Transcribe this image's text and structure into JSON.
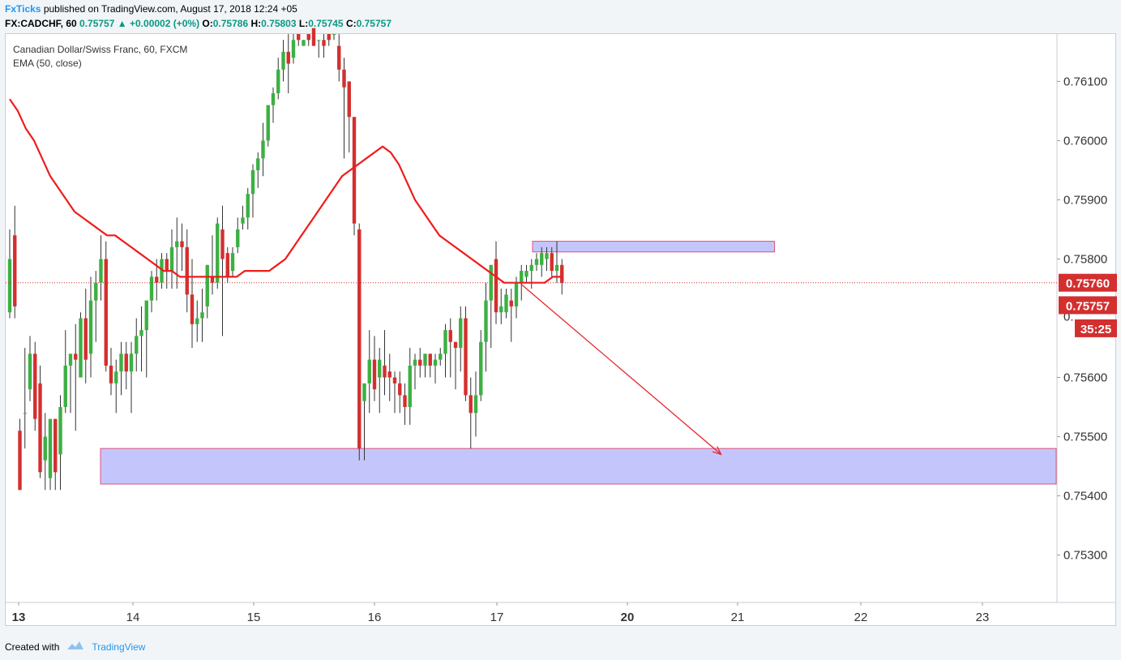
{
  "header": {
    "author": "FxTicks",
    "published_text": "published on TradingView.com, August 17, 2018 12:24 +05",
    "symbol": "FX:CADCHF, 60",
    "last": "0.75757",
    "change": "+0.00002 (+0%)",
    "open_label": "O:",
    "open": "0.75786",
    "high_label": "H:",
    "high": "0.75803",
    "low_label": "L:",
    "low": "0.75745",
    "close_label": "C:",
    "close": "0.75757"
  },
  "legend": {
    "instrument": "Canadian Dollar/Swiss Franc, 60, FXCM",
    "indicator": "EMA (50, close)"
  },
  "footer": {
    "created_with": "Created with",
    "brand": "TradingView"
  },
  "colors": {
    "up": "#3cb043",
    "down": "#d32f2f",
    "ema": "#ee1c1c",
    "zone_fill": "#c4c6fb",
    "zone_border": "#e0507a",
    "arrow": "#e8282d"
  },
  "chart_data": {
    "type": "candlestick",
    "ylim": [
      0.7522,
      0.7618
    ],
    "y_ticks": [
      "0.76100",
      "0.76000",
      "0.75900",
      "0.75800",
      "0.75600",
      "0.75500",
      "0.75400",
      "0.75300"
    ],
    "x_ticks": [
      "13",
      "14",
      "15",
      "16",
      "17",
      "20",
      "21",
      "22",
      "23"
    ],
    "price_labels": [
      "0.75760",
      "0.75757",
      "35:25"
    ],
    "current_price": 0.7576,
    "overlay_label": "0.",
    "candles": [
      [
        0.7571,
        0.7585,
        0.757,
        0.758
      ],
      [
        0.7584,
        0.7589,
        0.757,
        0.7572
      ],
      [
        0.7551,
        0.7553,
        0.7541,
        0.7541
      ],
      [
        0.7554,
        0.7565,
        0.7548,
        0.7554
      ],
      [
        0.7558,
        0.7567,
        0.7556,
        0.7564
      ],
      [
        0.7564,
        0.7566,
        0.7551,
        0.7553
      ],
      [
        0.7559,
        0.7562,
        0.7543,
        0.7544
      ],
      [
        0.7546,
        0.7554,
        0.7541,
        0.755
      ],
      [
        0.7543,
        0.7553,
        0.7541,
        0.7553
      ],
      [
        0.7553,
        0.7553,
        0.7541,
        0.7544
      ],
      [
        0.7547,
        0.7557,
        0.7541,
        0.7555
      ],
      [
        0.7555,
        0.7568,
        0.7554,
        0.7562
      ],
      [
        0.7562,
        0.7564,
        0.7554,
        0.7564
      ],
      [
        0.7564,
        0.7569,
        0.7551,
        0.7563
      ],
      [
        0.756,
        0.7571,
        0.756,
        0.757
      ],
      [
        0.757,
        0.7575,
        0.7559,
        0.7563
      ],
      [
        0.7564,
        0.7577,
        0.756,
        0.7573
      ],
      [
        0.7573,
        0.7578,
        0.7566,
        0.7576
      ],
      [
        0.7576,
        0.7584,
        0.7573,
        0.758
      ],
      [
        0.758,
        0.7583,
        0.7561,
        0.7562
      ],
      [
        0.7562,
        0.7565,
        0.7557,
        0.7559
      ],
      [
        0.7559,
        0.7563,
        0.7554,
        0.7561
      ],
      [
        0.7561,
        0.7566,
        0.7557,
        0.7564
      ],
      [
        0.7564,
        0.7566,
        0.7558,
        0.7561
      ],
      [
        0.7561,
        0.7566,
        0.7554,
        0.7564
      ],
      [
        0.7564,
        0.757,
        0.7561,
        0.7567
      ],
      [
        0.7567,
        0.7572,
        0.7561,
        0.7568
      ],
      [
        0.7568,
        0.7573,
        0.756,
        0.7573
      ],
      [
        0.7573,
        0.7578,
        0.7571,
        0.7577
      ],
      [
        0.7577,
        0.758,
        0.7573,
        0.7576
      ],
      [
        0.7576,
        0.7581,
        0.7575,
        0.758
      ],
      [
        0.758,
        0.7581,
        0.7575,
        0.7578
      ],
      [
        0.7578,
        0.7585,
        0.7575,
        0.7582
      ],
      [
        0.7582,
        0.7587,
        0.7575,
        0.7583
      ],
      [
        0.7583,
        0.7586,
        0.7578,
        0.7582
      ],
      [
        0.7582,
        0.7585,
        0.7571,
        0.7574
      ],
      [
        0.7574,
        0.758,
        0.7565,
        0.7569
      ],
      [
        0.7569,
        0.7573,
        0.7566,
        0.757
      ],
      [
        0.757,
        0.7575,
        0.7566,
        0.7571
      ],
      [
        0.7572,
        0.7579,
        0.757,
        0.7579
      ],
      [
        0.7577,
        0.7584,
        0.7574,
        0.7576
      ],
      [
        0.7576,
        0.7587,
        0.7575,
        0.7586
      ],
      [
        0.7585,
        0.7589,
        0.7567,
        0.758
      ],
      [
        0.7581,
        0.7582,
        0.7576,
        0.7577
      ],
      [
        0.7578,
        0.7582,
        0.7577,
        0.7581
      ],
      [
        0.7582,
        0.7587,
        0.7581,
        0.7585
      ],
      [
        0.7586,
        0.7589,
        0.7585,
        0.7587
      ],
      [
        0.7587,
        0.7592,
        0.7585,
        0.7591
      ],
      [
        0.7591,
        0.7596,
        0.7587,
        0.7595
      ],
      [
        0.7595,
        0.7598,
        0.7592,
        0.7597
      ],
      [
        0.7597,
        0.7603,
        0.7594,
        0.76
      ],
      [
        0.76,
        0.7606,
        0.7599,
        0.7606
      ],
      [
        0.7606,
        0.7609,
        0.7603,
        0.7608
      ],
      [
        0.7608,
        0.7614,
        0.7607,
        0.7612
      ],
      [
        0.7612,
        0.7617,
        0.761,
        0.7615
      ],
      [
        0.7615,
        0.7618,
        0.7608,
        0.7613
      ],
      [
        0.7614,
        0.7618,
        0.7613,
        0.7617
      ],
      [
        0.7618,
        0.7618,
        0.7616,
        0.7617
      ],
      [
        0.7616,
        0.7617,
        0.7616,
        0.7617
      ],
      [
        0.7618,
        0.7618,
        0.7616,
        0.7617
      ],
      [
        0.7619,
        0.7619,
        0.7616,
        0.7616
      ],
      [
        0.7617,
        0.7617,
        0.7614,
        0.7617
      ],
      [
        0.7617,
        0.7618,
        0.7614,
        0.7616
      ],
      [
        0.7618,
        0.7618,
        0.7616,
        0.7617
      ],
      [
        0.7618,
        0.7618,
        0.7617,
        0.7618
      ],
      [
        0.7616,
        0.7618,
        0.761,
        0.7612
      ],
      [
        0.7612,
        0.7614,
        0.7597,
        0.7609
      ],
      [
        0.761,
        0.761,
        0.7598,
        0.7604
      ],
      [
        0.7604,
        0.7604,
        0.7584,
        0.7586
      ],
      [
        0.7585,
        0.7586,
        0.7546,
        0.7548
      ],
      [
        0.7556,
        0.7559,
        0.7546,
        0.7559
      ],
      [
        0.7559,
        0.7568,
        0.7554,
        0.7563
      ],
      [
        0.7563,
        0.7567,
        0.7556,
        0.7558
      ],
      [
        0.756,
        0.7565,
        0.7554,
        0.7563
      ],
      [
        0.7562,
        0.7568,
        0.7557,
        0.756
      ],
      [
        0.7561,
        0.7564,
        0.7556,
        0.756
      ],
      [
        0.756,
        0.7561,
        0.7554,
        0.7559
      ],
      [
        0.7559,
        0.7561,
        0.7554,
        0.7557
      ],
      [
        0.7557,
        0.7559,
        0.7552,
        0.7555
      ],
      [
        0.7555,
        0.7565,
        0.7552,
        0.7562
      ],
      [
        0.7562,
        0.7564,
        0.7558,
        0.7563
      ],
      [
        0.7563,
        0.7565,
        0.756,
        0.7562
      ],
      [
        0.7562,
        0.7564,
        0.756,
        0.7564
      ],
      [
        0.7564,
        0.7564,
        0.756,
        0.7562
      ],
      [
        0.7562,
        0.7564,
        0.7559,
        0.7563
      ],
      [
        0.7563,
        0.7565,
        0.7562,
        0.7564
      ],
      [
        0.7564,
        0.7569,
        0.756,
        0.7568
      ],
      [
        0.7568,
        0.757,
        0.756,
        0.7566
      ],
      [
        0.7566,
        0.7566,
        0.7558,
        0.7565
      ],
      [
        0.7565,
        0.7572,
        0.7561,
        0.757
      ],
      [
        0.757,
        0.7572,
        0.7556,
        0.7557
      ],
      [
        0.7557,
        0.756,
        0.7548,
        0.7554
      ],
      [
        0.7554,
        0.7561,
        0.755,
        0.7557
      ],
      [
        0.7557,
        0.7568,
        0.7556,
        0.7566
      ],
      [
        0.7566,
        0.7576,
        0.7561,
        0.7573
      ],
      [
        0.7573,
        0.7579,
        0.7565,
        0.7579
      ],
      [
        0.758,
        0.7583,
        0.7569,
        0.7571
      ],
      [
        0.7571,
        0.7575,
        0.7569,
        0.7572
      ],
      [
        0.7571,
        0.7575,
        0.757,
        0.7574
      ],
      [
        0.7573,
        0.7575,
        0.7566,
        0.7572
      ],
      [
        0.7572,
        0.7577,
        0.757,
        0.7576
      ],
      [
        0.7576,
        0.7579,
        0.7573,
        0.7578
      ],
      [
        0.7577,
        0.7579,
        0.7576,
        0.7578
      ],
      [
        0.7578,
        0.758,
        0.7575,
        0.7579
      ],
      [
        0.7579,
        0.7581,
        0.7578,
        0.758
      ],
      [
        0.7579,
        0.7582,
        0.7577,
        0.7581
      ],
      [
        0.758,
        0.7582,
        0.7578,
        0.7581
      ],
      [
        0.7581,
        0.7582,
        0.7577,
        0.7578
      ],
      [
        0.7578,
        0.7583,
        0.7576,
        0.7579
      ],
      [
        0.7579,
        0.758,
        0.7574,
        0.7576
      ]
    ],
    "ema": [
      0.7607,
      0.7605,
      0.7602,
      0.76,
      0.7597,
      0.7594,
      0.7592,
      0.759,
      0.7588,
      0.7587,
      0.7586,
      0.7585,
      0.7584,
      0.7584,
      0.7583,
      0.7582,
      0.7581,
      0.758,
      0.7579,
      0.7578,
      0.7578,
      0.7577,
      0.7577,
      0.7577,
      0.7577,
      0.7577,
      0.7577,
      0.7577,
      0.7577,
      0.7578,
      0.7578,
      0.7578,
      0.7578,
      0.7579,
      0.758,
      0.7582,
      0.7584,
      0.7586,
      0.7588,
      0.759,
      0.7592,
      0.7594,
      0.7595,
      0.7596,
      0.7597,
      0.7598,
      0.7599,
      0.7598,
      0.7596,
      0.7593,
      0.759,
      0.7588,
      0.7586,
      0.7584,
      0.7583,
      0.7582,
      0.7581,
      0.758,
      0.7579,
      0.7578,
      0.7577,
      0.7576,
      0.7576,
      0.7576,
      0.7576,
      0.7576,
      0.7576,
      0.7577,
      0.7577
    ],
    "zones": [
      {
        "price_top": 0.7583,
        "price_bottom": 0.75812,
        "from_index": 104,
        "to_day": 21.3
      },
      {
        "price_top": 0.7548,
        "price_bottom": 0.7542,
        "from_index": 19,
        "to_day": 24
      }
    ],
    "arrow": {
      "from_day": 17.55,
      "from_price": 0.75758,
      "to_day": 20.85,
      "to_price": 0.7547
    }
  }
}
